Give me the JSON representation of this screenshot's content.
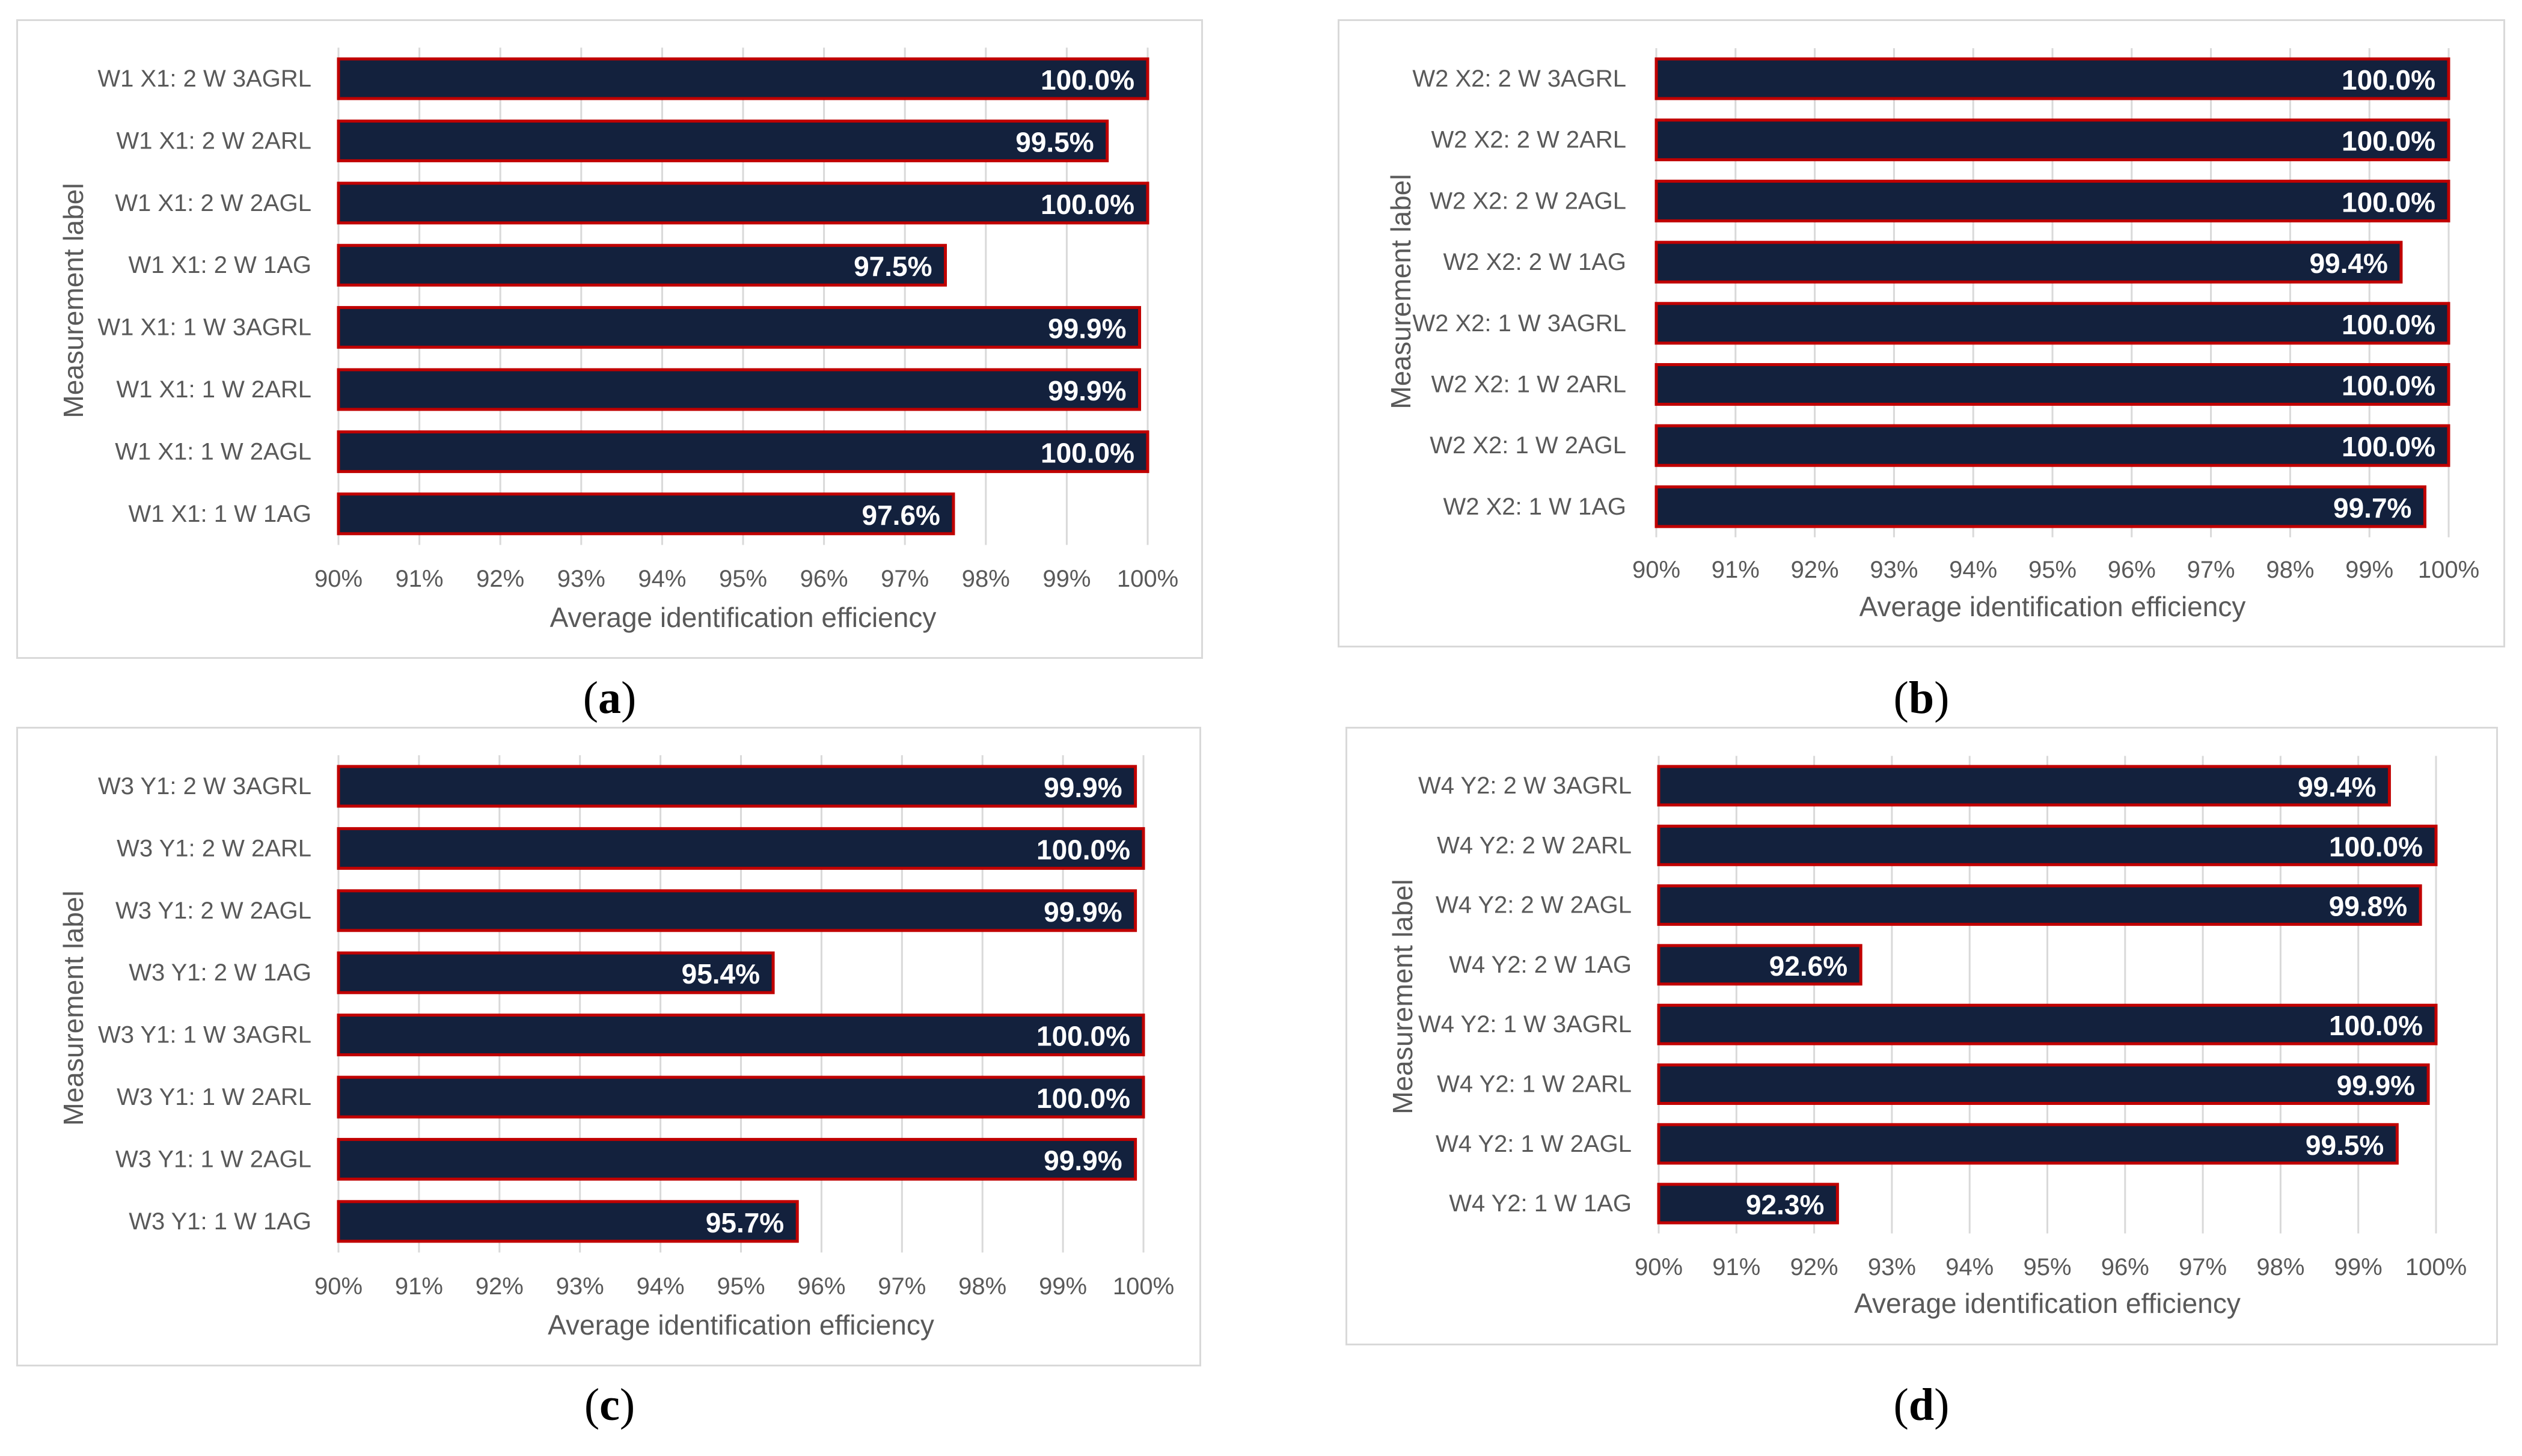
{
  "colors": {
    "bar_fill": "#13213d",
    "bar_stroke": "#c00000",
    "grid": "#d9d9d9",
    "text": "#595959"
  },
  "captions": {
    "a": {
      "open": "(",
      "letter": "a",
      "close": ")"
    },
    "b": {
      "open": "(",
      "letter": "b",
      "close": ")"
    },
    "c": {
      "open": "(",
      "letter": "c",
      "close": ")"
    },
    "d": {
      "open": "(",
      "letter": "d",
      "close": ")"
    }
  },
  "chart_data": [
    {
      "id": "a",
      "type": "bar",
      "orientation": "horizontal",
      "title": "",
      "xlabel": "Average identification efficiency",
      "ylabel": "Measurement label",
      "xlim": [
        90,
        100
      ],
      "xticks": [
        "90%",
        "91%",
        "92%",
        "93%",
        "94%",
        "95%",
        "96%",
        "97%",
        "98%",
        "99%",
        "100%"
      ],
      "categories": [
        "W1 X1: 2 W 3AGRL",
        "W1 X1: 2 W 2ARL",
        "W1 X1: 2 W 2AGL",
        "W1 X1: 2 W 1AG",
        "W1 X1: 1 W 3AGRL",
        "W1 X1: 1 W 2ARL",
        "W1 X1: 1 W 2AGL",
        "W1 X1: 1 W 1AG"
      ],
      "values": [
        100.0,
        99.5,
        100.0,
        97.5,
        99.9,
        99.9,
        100.0,
        97.6
      ],
      "labels": [
        "100.0%",
        "99.5%",
        "100.0%",
        "97.5%",
        "99.9%",
        "99.9%",
        "100.0%",
        "97.6%"
      ]
    },
    {
      "id": "b",
      "type": "bar",
      "orientation": "horizontal",
      "title": "",
      "xlabel": "Average identification efficiency",
      "ylabel": "Measurement label",
      "xlim": [
        90,
        100
      ],
      "xticks": [
        "90%",
        "91%",
        "92%",
        "93%",
        "94%",
        "95%",
        "96%",
        "97%",
        "98%",
        "99%",
        "100%"
      ],
      "categories": [
        "W2 X2: 2 W 3AGRL",
        "W2 X2: 2 W 2ARL",
        "W2 X2: 2 W 2AGL",
        "W2 X2: 2 W 1AG",
        "W2 X2: 1 W 3AGRL",
        "W2 X2: 1 W 2ARL",
        "W2 X2: 1 W 2AGL",
        "W2 X2: 1 W 1AG"
      ],
      "values": [
        100.0,
        100.0,
        100.0,
        99.4,
        100.0,
        100.0,
        100.0,
        99.7
      ],
      "labels": [
        "100.0%",
        "100.0%",
        "100.0%",
        "99.4%",
        "100.0%",
        "100.0%",
        "100.0%",
        "99.7%"
      ]
    },
    {
      "id": "c",
      "type": "bar",
      "orientation": "horizontal",
      "title": "",
      "xlabel": "Average identification efficiency",
      "ylabel": "Measurement label",
      "xlim": [
        90,
        100
      ],
      "xticks": [
        "90%",
        "91%",
        "92%",
        "93%",
        "94%",
        "95%",
        "96%",
        "97%",
        "98%",
        "99%",
        "100%"
      ],
      "categories": [
        "W3 Y1: 2 W 3AGRL",
        "W3 Y1: 2 W 2ARL",
        "W3 Y1: 2 W 2AGL",
        "W3 Y1: 2 W 1AG",
        "W3 Y1: 1 W 3AGRL",
        "W3 Y1: 1 W 2ARL",
        "W3 Y1: 1 W 2AGL",
        "W3 Y1: 1 W 1AG"
      ],
      "values": [
        99.9,
        100.0,
        99.9,
        95.4,
        100.0,
        100.0,
        99.9,
        95.7
      ],
      "labels": [
        "99.9%",
        "100.0%",
        "99.9%",
        "95.4%",
        "100.0%",
        "100.0%",
        "99.9%",
        "95.7%"
      ]
    },
    {
      "id": "d",
      "type": "bar",
      "orientation": "horizontal",
      "title": "",
      "xlabel": "Average identification efficiency",
      "ylabel": "Measurement label",
      "xlim": [
        90,
        100
      ],
      "xticks": [
        "90%",
        "91%",
        "92%",
        "93%",
        "94%",
        "95%",
        "96%",
        "97%",
        "98%",
        "99%",
        "100%"
      ],
      "categories": [
        "W4 Y2: 2 W 3AGRL",
        "W4 Y2: 2 W 2ARL",
        "W4 Y2: 2 W 2AGL",
        "W4 Y2: 2 W 1AG",
        "W4 Y2: 1 W 3AGRL",
        "W4 Y2: 1 W 2ARL",
        "W4 Y2: 1 W 2AGL",
        "W4 Y2: 1 W 1AG"
      ],
      "values": [
        99.4,
        100.0,
        99.8,
        92.6,
        100.0,
        99.9,
        99.5,
        92.3
      ],
      "labels": [
        "99.4%",
        "100.0%",
        "99.8%",
        "92.6%",
        "100.0%",
        "99.9%",
        "99.5%",
        "92.3%"
      ]
    }
  ]
}
